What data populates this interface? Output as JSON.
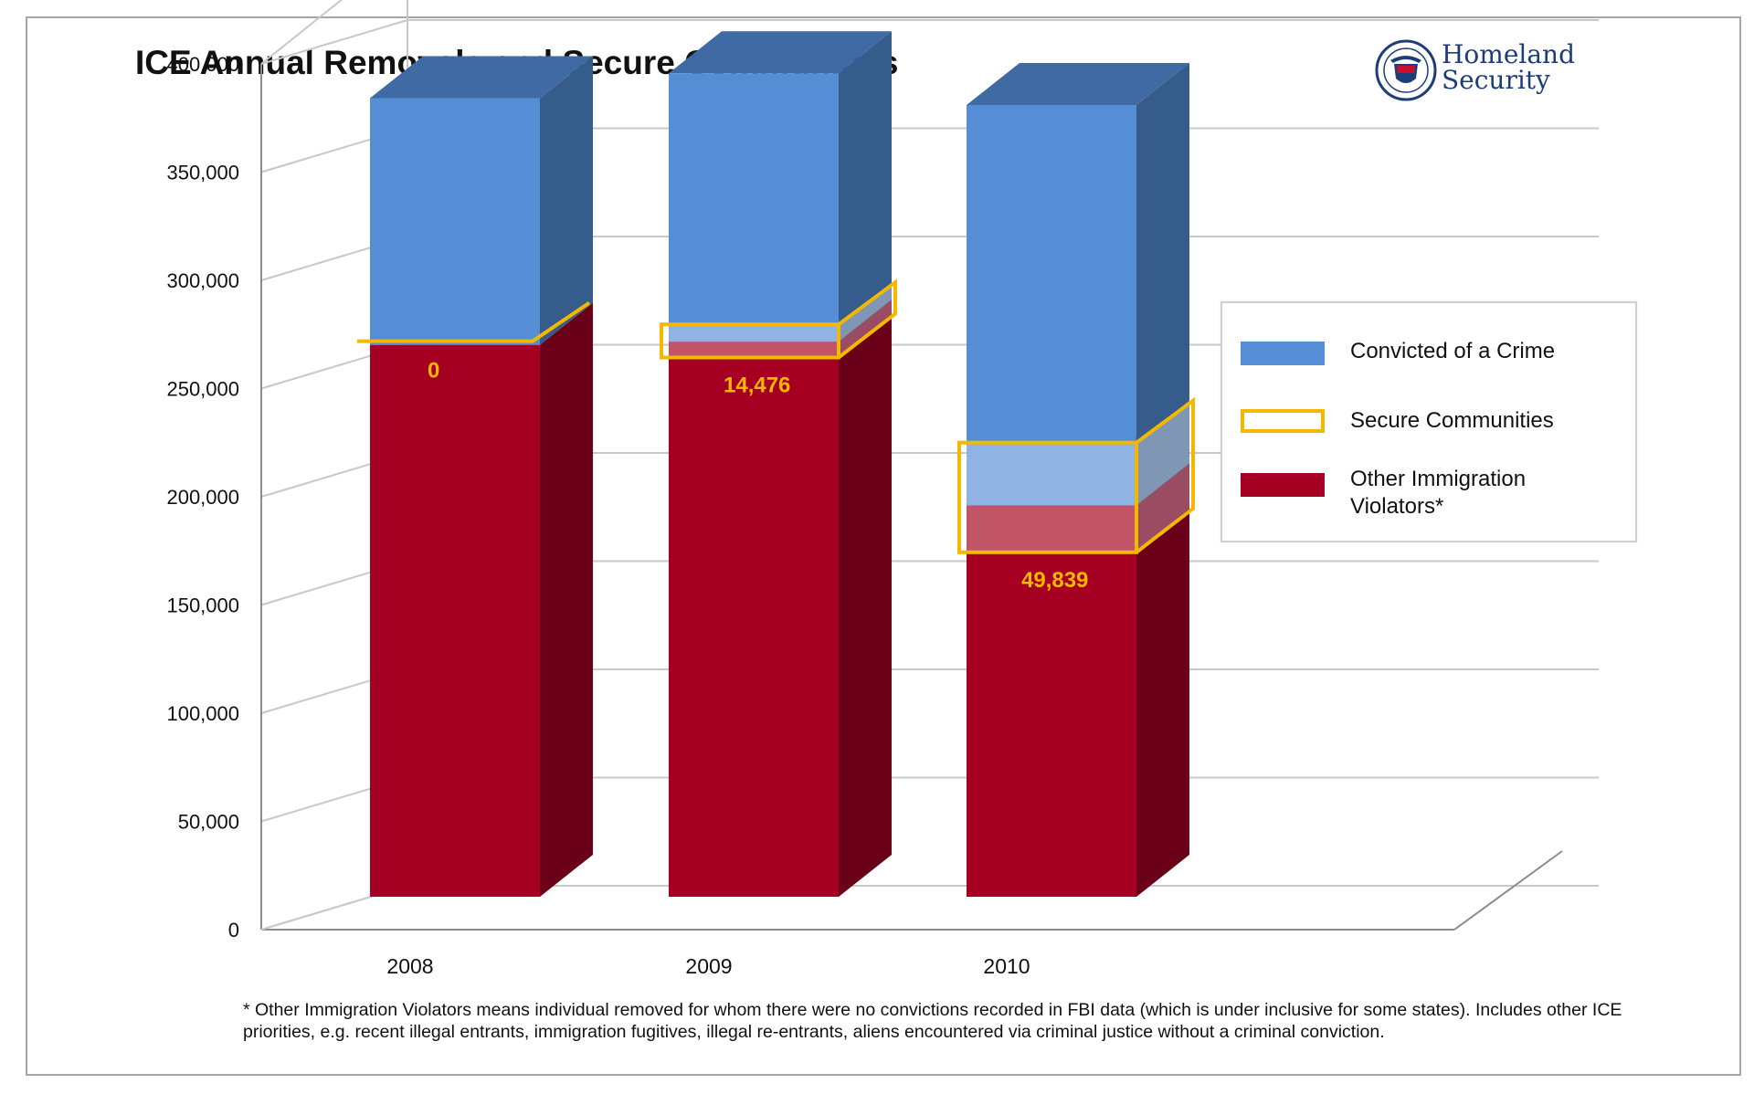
{
  "title": "ICE Annual Removals and Secure Communities",
  "logo": {
    "line1": "Homeland",
    "line2": "Security",
    "seal_text": "U.S. DEPARTMENT OF HOMELAND SECURITY"
  },
  "footnote": "* Other Immigration Violators means individual removed for whom there were no convictions recorded in FBI data (which is under inclusive for some states). Includes other ICE priorities, e.g. recent illegal entrants, immigration fugitives, illegal re-entrants, aliens encountered via criminal justice without a criminal conviction.",
  "colors": {
    "crime": "#558ed5",
    "crime_side": "#355c8a",
    "crime_top": "#3f6aa3",
    "other": "#a50021",
    "other_side": "#6b0019",
    "secure_border": "#f5b800",
    "secure_label": "#f5b800",
    "grid": "#c8c8c8"
  },
  "legend": [
    {
      "label": "Convicted of a Crime",
      "color": "#558ed5"
    },
    {
      "label": "Secure Communities",
      "color": "#f5b800"
    },
    {
      "label": "Other Immigration Violators*",
      "color": "#a50021"
    }
  ],
  "chart_data": {
    "type": "bar",
    "subtype": "stacked-3d",
    "categories": [
      "2008",
      "2009",
      "2010"
    ],
    "series": [
      {
        "name": "Other Immigration Violators*",
        "values": [
          255000,
          250000,
          160000
        ]
      },
      {
        "name": "Secure Communities",
        "values": [
          0,
          14476,
          49839
        ]
      },
      {
        "name": "Convicted of a Crime",
        "values": [
          114000,
          124000,
          185000
        ]
      }
    ],
    "secure_communities_crime_portion": [
      0,
      8000,
      29000
    ],
    "annotations": [
      "0",
      "14,476",
      "49,839"
    ],
    "yticks": [
      "0",
      "50,000",
      "100,000",
      "150,000",
      "200,000",
      "250,000",
      "300,000",
      "350,000",
      "400,000"
    ],
    "ylim": [
      0,
      400000
    ],
    "grid": true,
    "legend_position": "right"
  }
}
